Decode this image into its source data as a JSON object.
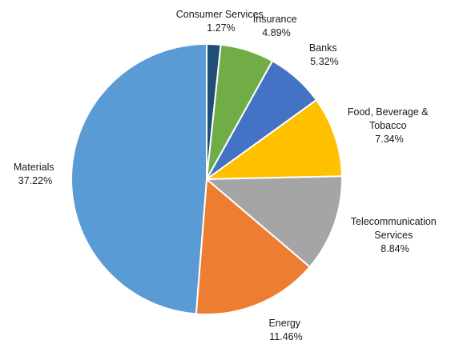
{
  "chart_data": {
    "type": "pie",
    "title": "",
    "slices": [
      {
        "label": [
          "Consumer Services"
        ],
        "value_label": "1.27%",
        "value": 1.27,
        "color": "#1f4e79"
      },
      {
        "label": [
          "Insurance"
        ],
        "value_label": "4.89%",
        "value": 4.89,
        "color": "#70ad47"
      },
      {
        "label": [
          "Banks"
        ],
        "value_label": "5.32%",
        "value": 5.32,
        "color": "#4472c4"
      },
      {
        "label": [
          "Food, Beverage &",
          "Tobacco"
        ],
        "value_label": "7.34%",
        "value": 7.34,
        "color": "#ffc000"
      },
      {
        "label": [
          "Telecommunication",
          "Services"
        ],
        "value_label": "8.84%",
        "value": 8.84,
        "color": "#a5a5a5"
      },
      {
        "label": [
          "Energy"
        ],
        "value_label": "11.46%",
        "value": 11.46,
        "color": "#ed7d31"
      },
      {
        "label": [
          "Materials"
        ],
        "value_label": "37.22%",
        "value": 37.22,
        "color": "#5b9bd5"
      }
    ]
  }
}
